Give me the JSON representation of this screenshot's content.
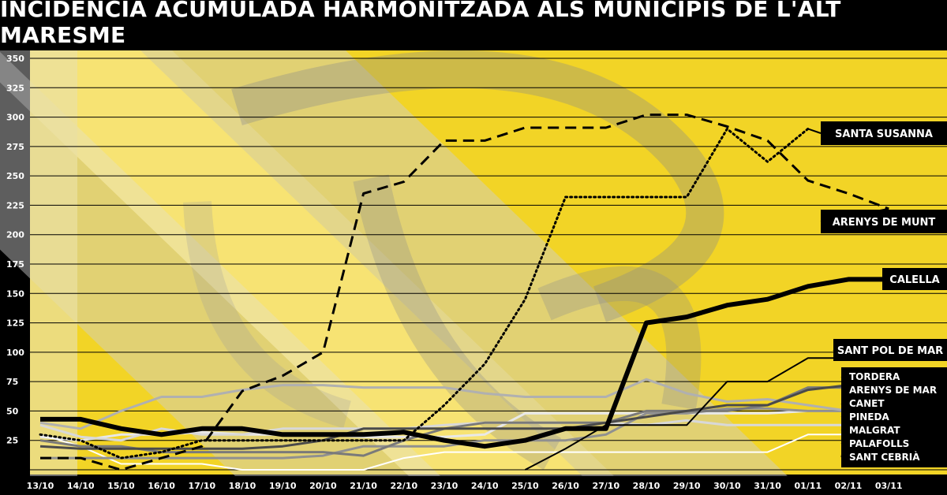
{
  "title": "INCIDÈNCIA ACUMULADA HARMONITZADA ALS MUNICIPIS DE L'ALT MARESME",
  "chart_data": {
    "type": "line",
    "title": "INCIDÈNCIA ACUMULADA HARMONITZADA ALS MUNICIPIS DE L'ALT MARESME",
    "xlabel": "",
    "ylabel": "",
    "ylim": [
      0,
      350
    ],
    "yticks": [
      0,
      25,
      50,
      75,
      100,
      125,
      150,
      175,
      200,
      225,
      250,
      275,
      300,
      325,
      350
    ],
    "ytick_labels": [
      "",
      "25",
      "50",
      "75",
      "100",
      "125",
      "150",
      "175",
      "200",
      "225",
      "250",
      "275",
      "300",
      "325",
      "350"
    ],
    "grid": true,
    "categories": [
      "13/10",
      "14/10",
      "15/10",
      "16/10",
      "17/10",
      "18/10",
      "19/10",
      "20/10",
      "21/10",
      "22/10",
      "23/10",
      "24/10",
      "25/10",
      "26/10",
      "27/10",
      "28/10",
      "29/10",
      "30/10",
      "31/10",
      "01/11",
      "02/11",
      "03/11"
    ],
    "series": [
      {
        "name": "SANTA SUSANNA",
        "color": "#000000",
        "style": "dotted",
        "width": 3,
        "values": [
          30,
          25,
          10,
          15,
          25,
          25,
          25,
          25,
          25,
          25,
          55,
          90,
          145,
          232,
          232,
          232,
          232,
          290,
          262,
          290,
          null,
          null
        ]
      },
      {
        "name": "ARENYS DE MUNT",
        "color": "#000000",
        "style": "dashed",
        "width": 3,
        "values": [
          10,
          10,
          0,
          10,
          20,
          67,
          80,
          100,
          235,
          245,
          280,
          280,
          291,
          291,
          291,
          302,
          302,
          292,
          280,
          246,
          235,
          222
        ]
      },
      {
        "name": "CALELLA",
        "color": "#000000",
        "style": "solid",
        "width": 6,
        "values": [
          43,
          43,
          35,
          30,
          35,
          35,
          30,
          30,
          30,
          32,
          25,
          20,
          25,
          35,
          35,
          125,
          130,
          140,
          145,
          156,
          162,
          162
        ]
      },
      {
        "name": "SANT POL DE MAR",
        "color": "#000000",
        "style": "solid",
        "width": 2,
        "values": [
          null,
          null,
          null,
          null,
          null,
          null,
          null,
          null,
          null,
          null,
          null,
          null,
          0,
          18,
          38,
          38,
          38,
          75,
          75,
          95,
          95,
          null
        ]
      },
      {
        "name": "TORDERA",
        "color": "#4a4a4a",
        "style": "solid",
        "width": 3,
        "values": [
          20,
          18,
          18,
          18,
          18,
          18,
          20,
          25,
          35,
          35,
          35,
          35,
          35,
          35,
          40,
          45,
          50,
          55,
          55,
          68,
          72,
          null
        ]
      },
      {
        "name": "ARENYS DE MAR",
        "color": "#7a7a7a",
        "style": "solid",
        "width": 3,
        "values": [
          25,
          20,
          20,
          15,
          15,
          15,
          15,
          15,
          12,
          25,
          35,
          40,
          40,
          40,
          40,
          50,
          50,
          50,
          55,
          70,
          70,
          null
        ]
      },
      {
        "name": "CANET",
        "color": "#b0b0b0",
        "style": "solid",
        "width": 3,
        "values": [
          40,
          35,
          50,
          62,
          62,
          68,
          72,
          72,
          70,
          70,
          70,
          65,
          62,
          62,
          62,
          77,
          65,
          58,
          60,
          55,
          50,
          null
        ]
      },
      {
        "name": "PINEDA",
        "color": "#909090",
        "style": "solid",
        "width": 3,
        "values": [
          10,
          10,
          10,
          10,
          10,
          10,
          10,
          12,
          20,
          20,
          20,
          25,
          25,
          25,
          30,
          48,
          48,
          52,
          52,
          50,
          50,
          null
        ]
      },
      {
        "name": "MALGRAT",
        "color": "#d8d8d8",
        "style": "solid",
        "width": 3,
        "values": [
          38,
          28,
          25,
          35,
          30,
          30,
          35,
          35,
          35,
          35,
          38,
          40,
          40,
          40,
          40,
          38,
          42,
          38,
          38,
          38,
          38,
          null
        ]
      },
      {
        "name": "PALAFOLLS",
        "color": "#ffffff",
        "style": "solid",
        "width": 2,
        "values": [
          30,
          20,
          5,
          5,
          5,
          0,
          0,
          0,
          0,
          10,
          15,
          15,
          15,
          15,
          15,
          15,
          15,
          15,
          15,
          30,
          30,
          null
        ]
      },
      {
        "name": "SANT CEBRIÀ",
        "color": "#e8e8e8",
        "style": "solid",
        "width": 3,
        "values": [
          28,
          25,
          30,
          30,
          32,
          30,
          30,
          30,
          28,
          28,
          28,
          30,
          48,
          48,
          48,
          48,
          48,
          48,
          48,
          50,
          50,
          null
        ]
      }
    ],
    "labels_with_pointer": [
      "SANTA SUSANNA",
      "ARENYS DE MUNT",
      "CALELLA",
      "SANT POL DE MAR"
    ],
    "legend_group": [
      "TORDERA",
      "ARENYS DE MAR",
      "CANET",
      "PINEDA",
      "MALGRAT",
      "PALAFOLLS",
      "SANT CEBRIÀ"
    ],
    "colors": {
      "background_yellow": "#f2d426",
      "background_grey": "#c8c8c8",
      "frame": "#000000",
      "label_box": "#000000",
      "label_text": "#ffffff"
    }
  }
}
